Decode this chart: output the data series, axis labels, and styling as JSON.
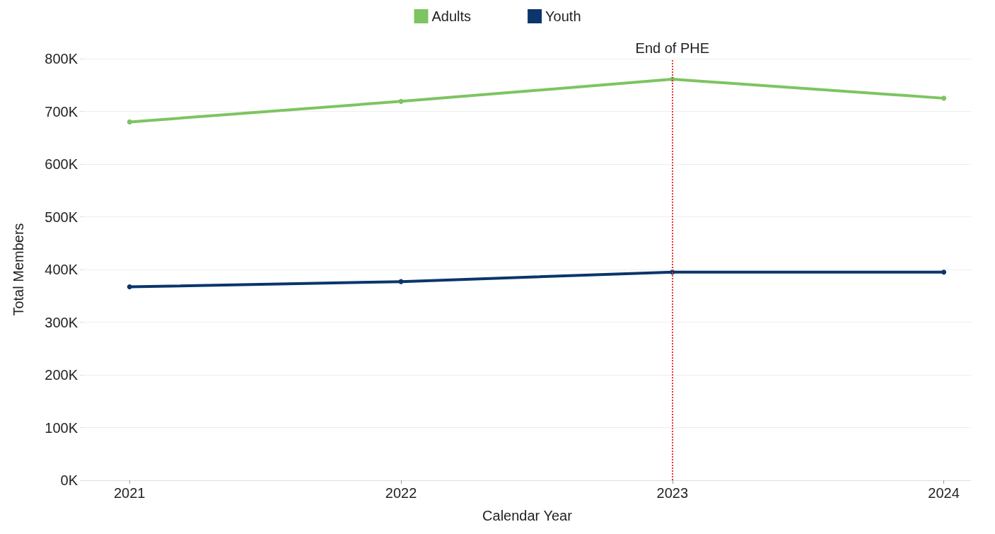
{
  "chart_data": {
    "type": "line",
    "xlabel": "Calendar Year",
    "ylabel": "Total Members",
    "x": [
      2021,
      2022,
      2023,
      2024
    ],
    "series": [
      {
        "name": "Adults",
        "color": "#7dc462",
        "values": [
          680000,
          719000,
          761000,
          725000
        ]
      },
      {
        "name": "Youth",
        "color": "#0b356b",
        "values": [
          367000,
          377000,
          395000,
          395000
        ]
      }
    ],
    "xlim": [
      2020.83,
      2024.1
    ],
    "xticks": [
      2021,
      2022,
      2023,
      2024
    ],
    "ylim": [
      0,
      800000
    ],
    "yticks": [
      {
        "value": 0,
        "label": "0K"
      },
      {
        "value": 100000,
        "label": "100K"
      },
      {
        "value": 200000,
        "label": "200K"
      },
      {
        "value": 300000,
        "label": "300K"
      },
      {
        "value": 400000,
        "label": "400K"
      },
      {
        "value": 500000,
        "label": "500K"
      },
      {
        "value": 600000,
        "label": "600K"
      },
      {
        "value": 700000,
        "label": "700K"
      },
      {
        "value": 800000,
        "label": "800K"
      }
    ],
    "ref_lines": [
      {
        "axis": "x",
        "value": 2023,
        "label": "End of PHE",
        "color": "#e8352e",
        "line_style": "dotted"
      }
    ],
    "grid": "y",
    "legend": "top",
    "marker": "circle",
    "line_style": "solid"
  }
}
